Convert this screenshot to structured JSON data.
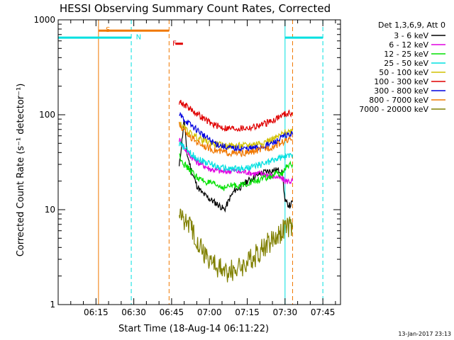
{
  "chart_data": {
    "type": "line",
    "title": "HESSI Observing Summary Count Rates, Corrected",
    "xlabel": "Start Time (18-Aug-14 06:11:22)",
    "ylabel": "Corrected Count Rate (s⁻¹ detector⁻¹)",
    "footer": "13-Jan-2017 23:13",
    "y_scale": "log",
    "ylim": [
      1,
      1000
    ],
    "xlim_minutes": [
      360,
      472
    ],
    "x_ticks": [
      {
        "label": "06:15",
        "m": 375
      },
      {
        "label": "06:30",
        "m": 390
      },
      {
        "label": "06:45",
        "m": 405
      },
      {
        "label": "07:00",
        "m": 420
      },
      {
        "label": "07:15",
        "m": 435
      },
      {
        "label": "07:30",
        "m": 450
      },
      {
        "label": "07:45",
        "m": 465
      }
    ],
    "y_ticks": [
      {
        "label": "1",
        "v": 1
      },
      {
        "label": "10",
        "v": 10
      },
      {
        "label": "100",
        "v": 100
      },
      {
        "label": "1000",
        "v": 1000
      }
    ],
    "legend_title": "Det 1,3,6,9, Att 0",
    "series": [
      {
        "name": "3 - 6 keV",
        "color": "#000000",
        "points": [
          [
            408,
            28
          ],
          [
            410,
            90
          ],
          [
            411,
            40
          ],
          [
            413,
            25
          ],
          [
            415,
            18
          ],
          [
            417,
            15
          ],
          [
            420,
            13
          ],
          [
            422,
            12
          ],
          [
            424,
            11
          ],
          [
            426,
            10
          ],
          [
            428,
            13
          ],
          [
            430,
            16
          ],
          [
            432,
            17
          ],
          [
            435,
            20
          ],
          [
            438,
            22
          ],
          [
            440,
            24
          ],
          [
            442,
            25
          ],
          [
            445,
            26
          ],
          [
            448,
            26
          ],
          [
            449,
            24
          ],
          [
            450,
            12
          ],
          [
            452,
            11
          ],
          [
            453,
            12
          ]
        ]
      },
      {
        "name": "6 - 12 keV",
        "color": "#e000e0",
        "points": [
          [
            408,
            55
          ],
          [
            410,
            45
          ],
          [
            412,
            38
          ],
          [
            415,
            32
          ],
          [
            418,
            29
          ],
          [
            420,
            27
          ],
          [
            423,
            26
          ],
          [
            426,
            25
          ],
          [
            429,
            26
          ],
          [
            432,
            25
          ],
          [
            435,
            25
          ],
          [
            438,
            24
          ],
          [
            441,
            24
          ],
          [
            444,
            23
          ],
          [
            447,
            22
          ],
          [
            449,
            21
          ],
          [
            450,
            20
          ],
          [
            453,
            20
          ]
        ]
      },
      {
        "name": "12 - 25 keV",
        "color": "#00e000",
        "points": [
          [
            408,
            38
          ],
          [
            410,
            30
          ],
          [
            413,
            25
          ],
          [
            416,
            21
          ],
          [
            420,
            19
          ],
          [
            423,
            18
          ],
          [
            426,
            17
          ],
          [
            429,
            18
          ],
          [
            432,
            18
          ],
          [
            435,
            19
          ],
          [
            438,
            20
          ],
          [
            441,
            21
          ],
          [
            444,
            22
          ],
          [
            447,
            24
          ],
          [
            449,
            23
          ],
          [
            450,
            28
          ],
          [
            453,
            30
          ]
        ]
      },
      {
        "name": "25 - 50 keV",
        "color": "#00e0e0",
        "points": [
          [
            408,
            50
          ],
          [
            410,
            45
          ],
          [
            412,
            40
          ],
          [
            415,
            35
          ],
          [
            418,
            32
          ],
          [
            421,
            30
          ],
          [
            424,
            28
          ],
          [
            427,
            27
          ],
          [
            430,
            27
          ],
          [
            433,
            27
          ],
          [
            436,
            28
          ],
          [
            439,
            29
          ],
          [
            442,
            31
          ],
          [
            445,
            33
          ],
          [
            448,
            35
          ],
          [
            450,
            36
          ],
          [
            453,
            38
          ]
        ]
      },
      {
        "name": "50 - 100 keV",
        "color": "#d0c000",
        "points": [
          [
            408,
            82
          ],
          [
            410,
            72
          ],
          [
            412,
            65
          ],
          [
            415,
            58
          ],
          [
            418,
            53
          ],
          [
            421,
            50
          ],
          [
            424,
            48
          ],
          [
            427,
            47
          ],
          [
            430,
            47
          ],
          [
            433,
            47
          ],
          [
            436,
            48
          ],
          [
            439,
            50
          ],
          [
            442,
            52
          ],
          [
            445,
            55
          ],
          [
            448,
            60
          ],
          [
            450,
            65
          ],
          [
            453,
            68
          ]
        ]
      },
      {
        "name": "100 - 300 keV",
        "color": "#e00000",
        "points": [
          [
            408,
            138
          ],
          [
            410,
            128
          ],
          [
            412,
            118
          ],
          [
            415,
            103
          ],
          [
            418,
            90
          ],
          [
            421,
            80
          ],
          [
            424,
            75
          ],
          [
            427,
            72
          ],
          [
            430,
            72
          ],
          [
            433,
            72
          ],
          [
            436,
            73
          ],
          [
            439,
            76
          ],
          [
            442,
            80
          ],
          [
            445,
            87
          ],
          [
            448,
            96
          ],
          [
            450,
            102
          ],
          [
            453,
            105
          ]
        ]
      },
      {
        "name": "300 - 800 keV",
        "color": "#0000e0",
        "points": [
          [
            408,
            100
          ],
          [
            410,
            90
          ],
          [
            412,
            80
          ],
          [
            415,
            70
          ],
          [
            418,
            60
          ],
          [
            421,
            52
          ],
          [
            424,
            48
          ],
          [
            427,
            45
          ],
          [
            430,
            44
          ],
          [
            433,
            44
          ],
          [
            436,
            44
          ],
          [
            439,
            45
          ],
          [
            442,
            47
          ],
          [
            445,
            50
          ],
          [
            448,
            55
          ],
          [
            450,
            60
          ],
          [
            453,
            62
          ]
        ]
      },
      {
        "name": "800 - 7000 keV",
        "color": "#f07800",
        "points": [
          [
            408,
            78
          ],
          [
            410,
            68
          ],
          [
            412,
            60
          ],
          [
            415,
            52
          ],
          [
            418,
            47
          ],
          [
            421,
            43
          ],
          [
            424,
            41
          ],
          [
            427,
            40
          ],
          [
            430,
            39
          ],
          [
            433,
            39
          ],
          [
            436,
            40
          ],
          [
            439,
            42
          ],
          [
            442,
            44
          ],
          [
            445,
            46
          ],
          [
            448,
            50
          ],
          [
            450,
            53
          ],
          [
            453,
            55
          ]
        ]
      },
      {
        "name": "7000 - 20000 keV",
        "color": "#808000",
        "points": [
          [
            408,
            9
          ],
          [
            410,
            8
          ],
          [
            412,
            7
          ],
          [
            414,
            5.5
          ],
          [
            416,
            4.5
          ],
          [
            418,
            3.5
          ],
          [
            420,
            3
          ],
          [
            423,
            2.5
          ],
          [
            426,
            2.2
          ],
          [
            429,
            2.3
          ],
          [
            432,
            2.5
          ],
          [
            435,
            2.8
          ],
          [
            438,
            3.2
          ],
          [
            441,
            4
          ],
          [
            444,
            4.5
          ],
          [
            447,
            5.5
          ],
          [
            449,
            6
          ],
          [
            450,
            6.5
          ],
          [
            453,
            6.5
          ]
        ]
      }
    ],
    "flags": [
      {
        "label": "S",
        "color": "#f07800",
        "start": 376,
        "end": 404
      },
      {
        "label": "N",
        "color": "#00e0e0",
        "start": 360,
        "end": 389
      },
      {
        "label": "N2",
        "color": "#00e0e0",
        "start": 450,
        "end": 465
      },
      {
        "label": "F",
        "color": "#e00000",
        "start": 406.5,
        "end": 409.5
      }
    ],
    "vlines": [
      {
        "m": 376,
        "color": "#f07800",
        "style": "solid"
      },
      {
        "m": 389,
        "color": "#00e0e0",
        "style": "dash"
      },
      {
        "m": 404,
        "color": "#f07800",
        "style": "dash"
      },
      {
        "m": 450,
        "color": "#00e0e0",
        "style": "solid"
      },
      {
        "m": 453,
        "color": "#f07800",
        "style": "dash"
      },
      {
        "m": 465,
        "color": "#00e0e0",
        "style": "dash"
      }
    ],
    "flag_labels": {
      "S": "S",
      "N": "N",
      "F": "F"
    }
  }
}
